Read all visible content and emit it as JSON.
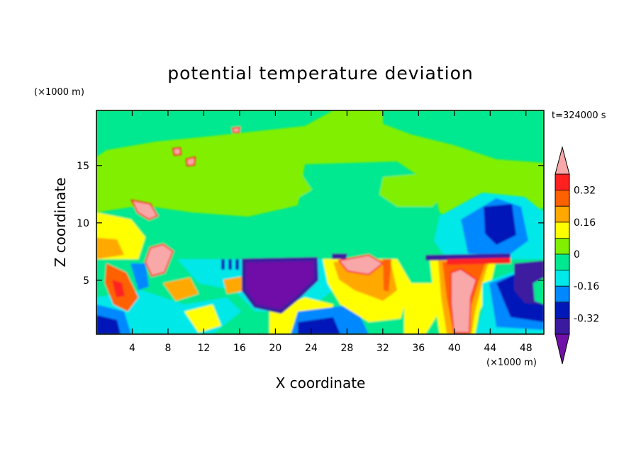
{
  "chart_data": {
    "type": "heatmap",
    "title": "potential temperature deviation",
    "time_label": "t=324000 s",
    "xlabel": "X coordinate",
    "ylabel": "Z coordinate",
    "x_unit": "(×1000 m)",
    "y_unit": "(×1000 m)",
    "xlim": [
      0,
      50
    ],
    "ylim": [
      0.3,
      19.8
    ],
    "x_ticks": [
      4,
      8,
      12,
      16,
      20,
      24,
      28,
      32,
      36,
      40,
      44,
      48
    ],
    "y_ticks": [
      5,
      10,
      15
    ],
    "colorbar": {
      "levels": [
        -0.4,
        -0.32,
        -0.24,
        -0.16,
        -0.08,
        0,
        0.08,
        0.16,
        0.24,
        0.32,
        0.4
      ],
      "labeled_levels": [
        0.32,
        0.16,
        0,
        -0.16,
        -0.32
      ],
      "colors": {
        "below_min": "#7010a8",
        "bands_low_to_high": [
          "#3c1aa0",
          "#0018b8",
          "#0088ff",
          "#00e8e8",
          "#00e890",
          "#80f000",
          "#ffff00",
          "#ffa800",
          "#ff6000",
          "#ff2020"
        ],
        "above_max": "#f8a8a8"
      },
      "extend": "both"
    },
    "domain_background_color": "#80f000",
    "notable_features": [
      {
        "value": ">0.4",
        "x": [
          38.5,
          41.5
        ],
        "z": [
          0.5,
          5
        ]
      },
      {
        "value": ">0.4",
        "x": [
          28,
          31
        ],
        "z": [
          5.6,
          6.9
        ]
      },
      {
        "value": ">0.4",
        "x": [
          5,
          7.5
        ],
        "z": [
          4.8,
          7.4
        ]
      },
      {
        "value": ">0.4",
        "x": [
          4,
          6.5
        ],
        "z": [
          10.3,
          12
        ]
      },
      {
        "value": "<-0.4",
        "x": [
          16.5,
          24.5
        ],
        "z": [
          3.8,
          6.7
        ]
      },
      {
        "value": "<-0.32",
        "x": [
          43,
          50
        ],
        "z": [
          1.8,
          6.7
        ]
      },
      {
        "value": "<-0.16",
        "x": [
          42,
          45
        ],
        "z": [
          8.8,
          11
        ]
      }
    ]
  }
}
